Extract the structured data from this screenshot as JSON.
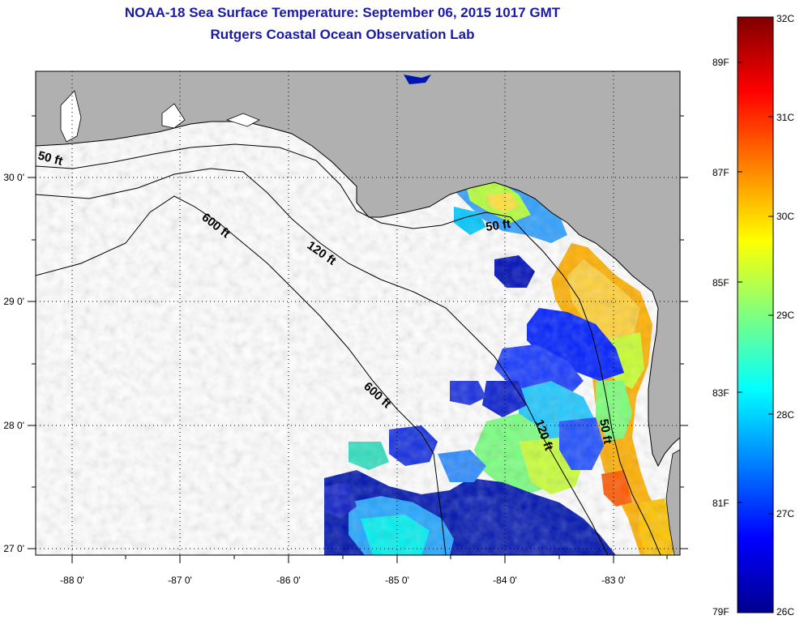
{
  "header": {
    "title": "NOAA-18 Sea Surface Temperature:  September 06, 2015 1017 GMT",
    "subtitle": "Rutgers Coastal Ocean Observation Lab"
  },
  "map": {
    "x_ticks": [
      "-88 0'",
      "-87 0'",
      "-86 0'",
      "-85 0'",
      "-84 0'",
      "-83 0'"
    ],
    "y_ticks": [
      "30 0'",
      "29 0'",
      "28 0'",
      "27 0'"
    ],
    "lon_range": [
      -88.33,
      -82.45
    ],
    "lat_range": [
      26.98,
      30.9
    ],
    "contours": [
      {
        "label": "50 ft"
      },
      {
        "label": "120 ft"
      },
      {
        "label": "600 ft"
      },
      {
        "label": "50 ft"
      },
      {
        "label": "600 ft"
      },
      {
        "label": "120 ft"
      },
      {
        "label": "50 ft"
      }
    ],
    "colors": {
      "land": "#b0b0b0",
      "ocean_no_data": "#ffffff",
      "coast": "#000000"
    }
  },
  "colorbar": {
    "celsius_labels": [
      "32C",
      "31C",
      "30C",
      "29C",
      "28C",
      "27C",
      "26C"
    ],
    "fahrenheit_labels": [
      "89F",
      "87F",
      "85F",
      "83F",
      "81F",
      "79F"
    ],
    "range_c": [
      26,
      32
    ],
    "colormap": "jet"
  }
}
